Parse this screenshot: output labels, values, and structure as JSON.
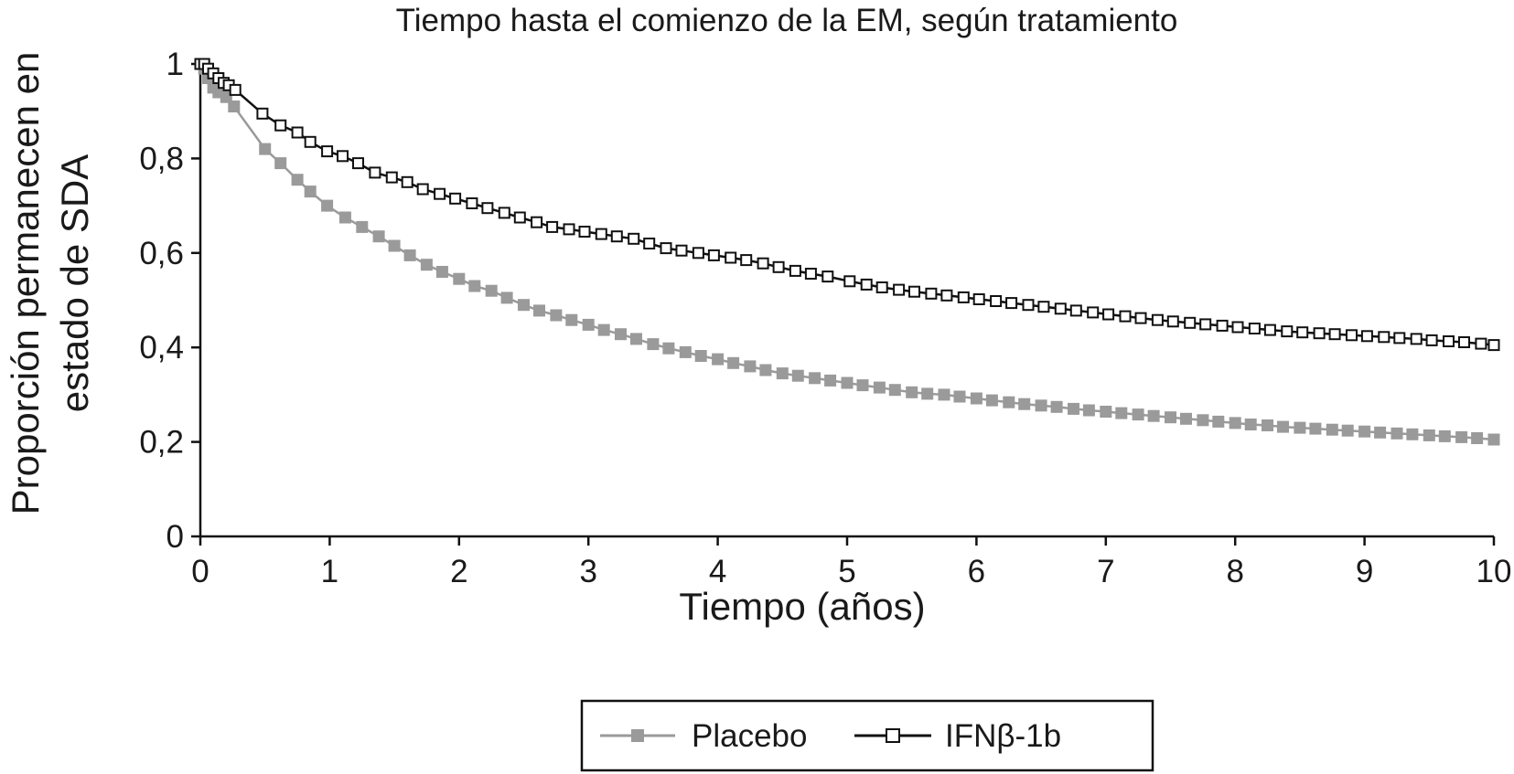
{
  "chart_data": {
    "type": "line",
    "title": "Tiempo hasta el comienzo de  la EM, según tratamiento",
    "xlabel": "Tiempo (años)",
    "ylabel_lines": [
      "Proporción permanecen en",
      "estado de SDA"
    ],
    "xlim": [
      0,
      10
    ],
    "ylim": [
      0,
      1
    ],
    "x_ticks": [
      0,
      1,
      2,
      3,
      4,
      5,
      6,
      7,
      8,
      9,
      10
    ],
    "x_tick_labels": [
      "0",
      "1",
      "2",
      "3",
      "4",
      "5",
      "6",
      "7",
      "8",
      "9",
      "10"
    ],
    "y_ticks": [
      0,
      0.2,
      0.4,
      0.6,
      0.8,
      1
    ],
    "y_tick_labels": [
      "0",
      "0,2",
      "0,4",
      "0,6",
      "0,8",
      "1"
    ],
    "grid": false,
    "legend_position": "bottom-center",
    "series": [
      {
        "name": "Placebo",
        "color": "#9a9a9a",
        "marker": "filled-square",
        "x": [
          0,
          0.03,
          0.06,
          0.1,
          0.14,
          0.2,
          0.26,
          0.5,
          0.62,
          0.75,
          0.85,
          0.98,
          1.12,
          1.25,
          1.38,
          1.5,
          1.62,
          1.75,
          1.87,
          2.0,
          2.12,
          2.25,
          2.37,
          2.5,
          2.62,
          2.75,
          2.87,
          3.0,
          3.12,
          3.25,
          3.37,
          3.5,
          3.62,
          3.75,
          3.87,
          4.0,
          4.12,
          4.25,
          4.37,
          4.5,
          4.62,
          4.75,
          4.87,
          5.0,
          5.12,
          5.25,
          5.37,
          5.5,
          5.62,
          5.75,
          5.87,
          6.0,
          6.12,
          6.25,
          6.37,
          6.5,
          6.62,
          6.75,
          6.87,
          7.0,
          7.12,
          7.25,
          7.37,
          7.5,
          7.62,
          7.75,
          7.87,
          8.0,
          8.12,
          8.25,
          8.37,
          8.5,
          8.62,
          8.75,
          8.87,
          9.0,
          9.12,
          9.25,
          9.37,
          9.5,
          9.62,
          9.75,
          9.87,
          10.0
        ],
        "y": [
          1.0,
          0.99,
          0.97,
          0.95,
          0.94,
          0.93,
          0.91,
          0.82,
          0.79,
          0.755,
          0.73,
          0.7,
          0.675,
          0.655,
          0.635,
          0.615,
          0.595,
          0.575,
          0.56,
          0.545,
          0.53,
          0.52,
          0.505,
          0.49,
          0.478,
          0.468,
          0.458,
          0.448,
          0.437,
          0.428,
          0.418,
          0.407,
          0.398,
          0.39,
          0.382,
          0.375,
          0.367,
          0.36,
          0.352,
          0.345,
          0.34,
          0.335,
          0.33,
          0.325,
          0.32,
          0.315,
          0.31,
          0.305,
          0.302,
          0.3,
          0.296,
          0.292,
          0.288,
          0.284,
          0.28,
          0.277,
          0.274,
          0.27,
          0.267,
          0.264,
          0.261,
          0.258,
          0.255,
          0.252,
          0.249,
          0.246,
          0.243,
          0.24,
          0.237,
          0.235,
          0.232,
          0.23,
          0.228,
          0.226,
          0.224,
          0.222,
          0.22,
          0.218,
          0.216,
          0.214,
          0.212,
          0.21,
          0.208,
          0.205
        ]
      },
      {
        "name": "IFNβ-1b",
        "color": "#111111",
        "marker": "open-square",
        "x": [
          0,
          0.03,
          0.06,
          0.1,
          0.14,
          0.18,
          0.22,
          0.27,
          0.48,
          0.62,
          0.75,
          0.85,
          0.98,
          1.1,
          1.22,
          1.35,
          1.48,
          1.6,
          1.72,
          1.85,
          1.97,
          2.1,
          2.22,
          2.35,
          2.47,
          2.6,
          2.72,
          2.85,
          2.97,
          3.1,
          3.22,
          3.35,
          3.47,
          3.6,
          3.72,
          3.85,
          3.97,
          4.1,
          4.22,
          4.35,
          4.47,
          4.6,
          4.72,
          4.85,
          5.02,
          5.15,
          5.27,
          5.4,
          5.52,
          5.65,
          5.77,
          5.9,
          6.02,
          6.15,
          6.27,
          6.4,
          6.52,
          6.65,
          6.77,
          6.9,
          7.02,
          7.15,
          7.27,
          7.4,
          7.52,
          7.65,
          7.77,
          7.9,
          8.02,
          8.15,
          8.27,
          8.4,
          8.52,
          8.65,
          8.77,
          8.9,
          9.02,
          9.15,
          9.27,
          9.4,
          9.52,
          9.65,
          9.77,
          9.9,
          10.0
        ],
        "y": [
          1.0,
          1.0,
          0.99,
          0.98,
          0.97,
          0.96,
          0.955,
          0.945,
          0.895,
          0.87,
          0.855,
          0.835,
          0.815,
          0.805,
          0.79,
          0.77,
          0.76,
          0.75,
          0.735,
          0.725,
          0.715,
          0.705,
          0.695,
          0.685,
          0.675,
          0.665,
          0.655,
          0.65,
          0.645,
          0.64,
          0.635,
          0.63,
          0.62,
          0.61,
          0.605,
          0.6,
          0.595,
          0.59,
          0.585,
          0.578,
          0.57,
          0.562,
          0.556,
          0.55,
          0.54,
          0.533,
          0.527,
          0.522,
          0.518,
          0.514,
          0.51,
          0.506,
          0.502,
          0.498,
          0.494,
          0.49,
          0.486,
          0.482,
          0.478,
          0.474,
          0.47,
          0.466,
          0.462,
          0.458,
          0.455,
          0.452,
          0.449,
          0.446,
          0.443,
          0.44,
          0.437,
          0.434,
          0.432,
          0.43,
          0.428,
          0.426,
          0.424,
          0.422,
          0.42,
          0.418,
          0.415,
          0.413,
          0.411,
          0.408,
          0.405
        ]
      }
    ]
  }
}
